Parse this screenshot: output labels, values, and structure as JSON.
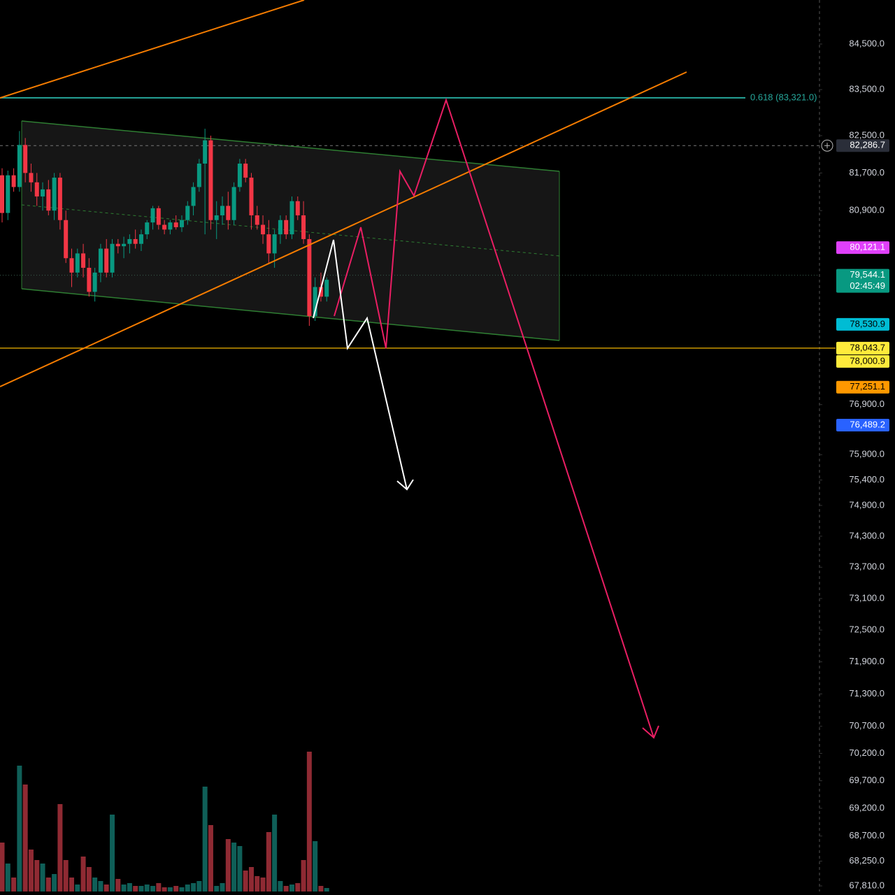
{
  "chart_data": {
    "type": "candlestick",
    "log_scale": true,
    "ylim": [
      67711,
      85478
    ],
    "yticks": [
      {
        "value": 84500,
        "label": "84,500.0"
      },
      {
        "value": 83500,
        "label": "83,500.0"
      },
      {
        "value": 82500,
        "label": "82,500.0"
      },
      {
        "value": 81700,
        "label": "81,700.0"
      },
      {
        "value": 80900,
        "label": "80,900.0"
      },
      {
        "value": 76900,
        "label": "76,900.0"
      },
      {
        "value": 75900,
        "label": "75,900.0"
      },
      {
        "value": 75400,
        "label": "75,400.0"
      },
      {
        "value": 74900,
        "label": "74,900.0"
      },
      {
        "value": 74300,
        "label": "74,300.0"
      },
      {
        "value": 73700,
        "label": "73,700.0"
      },
      {
        "value": 73100,
        "label": "73,100.0"
      },
      {
        "value": 72500,
        "label": "72,500.0"
      },
      {
        "value": 71900,
        "label": "71,900.0"
      },
      {
        "value": 71300,
        "label": "71,300.0"
      },
      {
        "value": 70700,
        "label": "70,700.0"
      },
      {
        "value": 70200,
        "label": "70,200.0"
      },
      {
        "value": 69700,
        "label": "69,700.0"
      },
      {
        "value": 69200,
        "label": "69,200.0"
      },
      {
        "value": 68700,
        "label": "68,700.0"
      },
      {
        "value": 68250,
        "label": "68,250.0"
      },
      {
        "value": 67810,
        "label": "67,810.0"
      }
    ],
    "up_color": "#089981",
    "down_color": "#f23645",
    "volume_up_color": "#0f5f58",
    "volume_down_color": "#8f2a33",
    "candles": [
      [
        81650,
        81800,
        80650,
        80850
      ],
      [
        80850,
        81750,
        80700,
        81650
      ],
      [
        81650,
        81800,
        81300,
        81400
      ],
      [
        81400,
        82600,
        81300,
        82300
      ],
      [
        82300,
        82450,
        81500,
        81700
      ],
      [
        81700,
        81900,
        81300,
        81500
      ],
      [
        81500,
        81700,
        81000,
        81200
      ],
      [
        81200,
        81500,
        80900,
        81350
      ],
      [
        81350,
        81550,
        80800,
        80900
      ],
      [
        80900,
        81700,
        80700,
        81600
      ],
      [
        81600,
        81700,
        80500,
        80700
      ],
      [
        80700,
        80900,
        79800,
        79900
      ],
      [
        79900,
        80100,
        79300,
        79600
      ],
      [
        79600,
        80100,
        79500,
        80000
      ],
      [
        80000,
        80200,
        79500,
        79700
      ],
      [
        79700,
        79900,
        79100,
        79200
      ],
      [
        79200,
        79700,
        79000,
        79600
      ],
      [
        79600,
        80200,
        79400,
        80100
      ],
      [
        80100,
        80300,
        79500,
        79600
      ],
      [
        79600,
        80300,
        79500,
        80200
      ],
      [
        80200,
        80300,
        80000,
        80150
      ],
      [
        80150,
        80350,
        79900,
        80200
      ],
      [
        80200,
        80400,
        80000,
        80300
      ],
      [
        80300,
        80500,
        80100,
        80200
      ],
      [
        80200,
        80500,
        80050,
        80400
      ],
      [
        80400,
        80700,
        80300,
        80650
      ],
      [
        80650,
        81000,
        80500,
        80950
      ],
      [
        80950,
        81000,
        80500,
        80600
      ],
      [
        80600,
        80700,
        80400,
        80500
      ],
      [
        80500,
        80700,
        80400,
        80650
      ],
      [
        80650,
        80800,
        80500,
        80550
      ],
      [
        80550,
        80800,
        80450,
        80700
      ],
      [
        80700,
        81100,
        80600,
        81000
      ],
      [
        81000,
        81500,
        80800,
        81400
      ],
      [
        81400,
        82000,
        81300,
        81900
      ],
      [
        81900,
        82650,
        80400,
        82400
      ],
      [
        82400,
        82500,
        80500,
        80700
      ],
      [
        80700,
        81100,
        80300,
        80800
      ],
      [
        80800,
        81200,
        80600,
        81000
      ],
      [
        81000,
        81300,
        80500,
        80700
      ],
      [
        80700,
        81500,
        80600,
        81400
      ],
      [
        81400,
        82000,
        81300,
        81900
      ],
      [
        81900,
        82000,
        81500,
        81600
      ],
      [
        81600,
        81700,
        80500,
        80800
      ],
      [
        80800,
        81000,
        80500,
        80600
      ],
      [
        80600,
        80800,
        80200,
        80400
      ],
      [
        80400,
        80700,
        79800,
        80000
      ],
      [
        80000,
        80500,
        79700,
        80400
      ],
      [
        80400,
        80800,
        80200,
        80700
      ],
      [
        80700,
        80800,
        80300,
        80400
      ],
      [
        80400,
        81200,
        80300,
        81100
      ],
      [
        81100,
        81200,
        80700,
        80800
      ],
      [
        80800,
        81100,
        80200,
        80300
      ],
      [
        80300,
        80400,
        78500,
        78700
      ],
      [
        78700,
        79500,
        78600,
        79300
      ],
      [
        79300,
        79600,
        79000,
        79100
      ],
      [
        79100,
        79500,
        79000,
        79450
      ]
    ],
    "volume": [
      70,
      40,
      20,
      180,
      153,
      60,
      45,
      40,
      20,
      25,
      125,
      45,
      20,
      10,
      50,
      35,
      20,
      15,
      10,
      110,
      18,
      10,
      12,
      8,
      8,
      10,
      8,
      12,
      6,
      6,
      8,
      6,
      10,
      12,
      15,
      150,
      95,
      8,
      12,
      75,
      70,
      65,
      30,
      35,
      22,
      20,
      85,
      110,
      15,
      8,
      10,
      12,
      45,
      200,
      72,
      8,
      5
    ],
    "fib": {
      "value": 83321,
      "label": "0.618 (83,321.0)",
      "color": "#26a69a"
    },
    "price_tags": [
      {
        "value": 82286.7,
        "label": "82,286.7",
        "color": "#2a2e39",
        "text_color": "#ffffff"
      },
      {
        "value": 80121.1,
        "label": "80,121.1",
        "color": "#e040fb",
        "text_color": "#ffffff"
      },
      {
        "value": 79544.1,
        "label": "79,544.1",
        "color": "#089981",
        "text_color": "#ffffff",
        "countdown": "02:45:49"
      },
      {
        "value": 78530.9,
        "label": "78,530.9",
        "color": "#00bcd4",
        "text_color": "#000000"
      },
      {
        "value": 78043.7,
        "label": "78,043.7",
        "color": "#ffeb3b",
        "text_color": "#000000"
      },
      {
        "value": 78000.9,
        "label": "78,000.9",
        "color": "#ffeb3b",
        "text_color": "#000000"
      },
      {
        "value": 77251.1,
        "label": "77,251.1",
        "color": "#ff9800",
        "text_color": "#000000"
      },
      {
        "value": 76489.2,
        "label": "76,489.2",
        "color": "#2962ff",
        "text_color": "#ffffff"
      }
    ]
  }
}
